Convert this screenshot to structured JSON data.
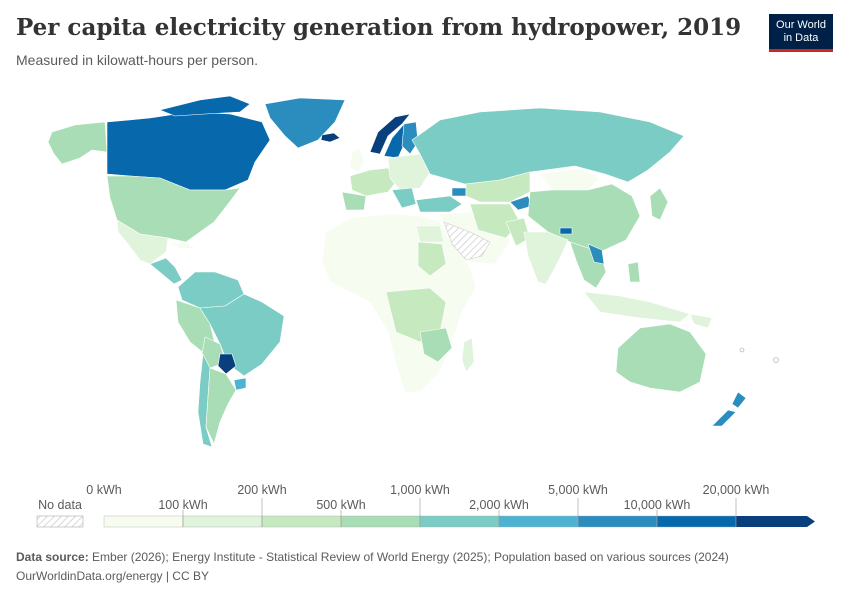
{
  "title": "Per capita electricity generation from hydropower, 2019",
  "subtitle": "Measured in kilowatt-hours per person.",
  "logo": {
    "line1": "Our World",
    "line2": "in Data"
  },
  "legend": {
    "no_data_label": "No data",
    "top_labels": [
      "0 kWh",
      "200 kWh",
      "1,000 kWh",
      "5,000 kWh",
      "20,000 kWh"
    ],
    "bottom_labels": [
      "100 kWh",
      "500 kWh",
      "2,000 kWh",
      "10,000 kWh"
    ],
    "colors": [
      "#f7fcf0",
      "#e0f3db",
      "#c7e9c0",
      "#a8ddb5",
      "#7bccc4",
      "#4eb3d3",
      "#2b8cbe",
      "#0868ac",
      "#083f7c"
    ]
  },
  "footer": {
    "source_label": "Data source:",
    "source_text": " Ember (2026); Energy Institute - Statistical Review of World Energy (2025); Population based on various sources (2024)",
    "url_text": "OurWorldinData.org/energy | CC BY"
  }
}
